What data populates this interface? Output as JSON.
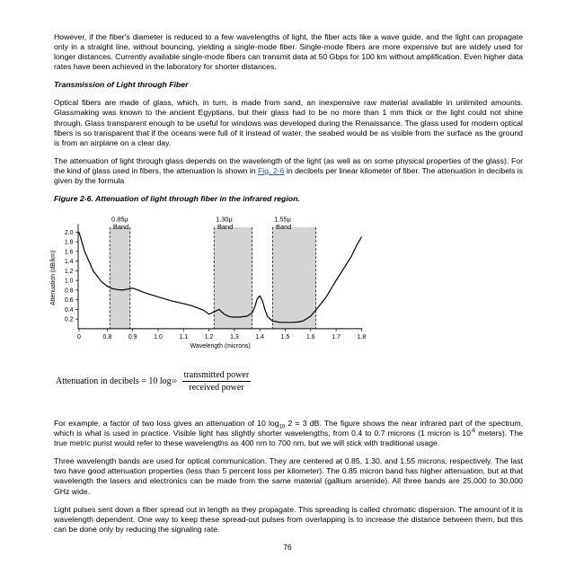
{
  "paragraphs_top": [
    "However, if the fiber's diameter is reduced to a few wavelengths of light, the fiber acts like a wave guide, and the light can propagate only in a straight line, without bouncing, yielding a single-mode fiber. Single-mode fibers are more expensive but are widely used for longer distances. Currently available single-mode fibers can transmit data at 50 Gbps for 100 km without amplification. Even higher data rates have been achieved in the laboratory for shorter distances."
  ],
  "section_heading": "Transmission of Light through Fiber",
  "para_optical": "Optical fibers are made of glass, which, in turn, is made from sand, an inexpensive raw material available in unlimited amounts. Glassmaking was known to the ancient Egyptians, but their glass had to be no more than 1 mm thick or the light could not shine through. Glass transparent enough to be useful for windows was developed during the Renaissance. The glass used for modern optical fibers is so transparent that if the oceans were full of it instead of water, the seabed would be as visible from the surface as the ground is from an airplane on a clear day.",
  "para_atten_a": "The attenuation of light through glass depends on the wavelength of the light (as well as on some physical properties of the glass). For the kind of glass used in fibers, the attenuation is shown in ",
  "para_atten_link": "Fig. 2-6",
  "para_atten_b": " in decibels per linear kilometer of fiber. The attenuation in decibels is given by the formula",
  "figure_caption": "Figure 2-6. Attenuation of light through fiber in the infrared region.",
  "formula": {
    "lhs": "Attenuation in decibels = 10 log",
    "sub": "10",
    "numerator": "transmitted power",
    "denominator": "received power"
  },
  "para_example": {
    "a": "For example, a factor of two loss gives an attenuation of 10 log",
    "sub": "10",
    "b": " 2 = 3 dB. The figure shows the near infrared part of the spectrum, which is what is used in practice. Visible light has slightly shorter wavelengths, from 0.4 to 0.7 microns (1 micron is 10",
    "sup": "-6",
    "c": " meters). The true metric purist would refer to these wavelengths as 400 nm to 700 nm, but we will stick with traditional usage."
  },
  "para_bands": "Three wavelength bands are used for optical communication. They are centered at 0.85, 1.30, and 1.55 microns, respectively. The last two have good attenuation properties (less than 5 percent loss per kilometer). The 0.85 micron band has higher attenuation, but at that wavelength the lasers and electronics can be made from the same material (gallium arsenide). All three bands are 25,000 to 30,000 GHz wide.",
  "para_pulses": "Light pulses sent down a fiber spread out in length as they propagate. This spreading is called chromatic dispersion. The amount of it is wavelength dependent. One way to keep these spread-out pulses from overlapping is to increase the distance between them, but this can be done only by reducing the signaling rate.",
  "page_number": "76",
  "chart_data": {
    "type": "line",
    "xlabel": "Wavelength (microns)",
    "ylabel": "Attenuation (dB/km)",
    "xlim": [
      0.7,
      1.8
    ],
    "ylim": [
      0,
      2.1
    ],
    "x_ticks": [
      "0",
      "0.8",
      "0.9",
      "1.0",
      "1.1",
      "1.2",
      "1.3",
      "1.4",
      "1.5",
      "1.6",
      "1.7",
      "1.8"
    ],
    "y_ticks": [
      "0.2",
      "0.4",
      "0.6",
      "0.8",
      "1.0",
      "1.2",
      "1.4",
      "1.6",
      "1.8",
      "2.0"
    ],
    "bands": [
      {
        "label_top": "0.85µ",
        "label_bottom": "Band",
        "x_start": 0.81,
        "x_end": 0.89
      },
      {
        "label_top": "1.30µ",
        "label_bottom": "Band",
        "x_start": 1.22,
        "x_end": 1.37
      },
      {
        "label_top": "1.55µ",
        "label_bottom": "Band",
        "x_start": 1.45,
        "x_end": 1.62
      }
    ],
    "x": [
      0.7,
      0.72,
      0.75,
      0.78,
      0.8,
      0.82,
      0.84,
      0.86,
      0.88,
      0.9,
      0.92,
      0.95,
      1.0,
      1.05,
      1.1,
      1.13,
      1.15,
      1.18,
      1.2,
      1.22,
      1.24,
      1.26,
      1.28,
      1.3,
      1.32,
      1.35,
      1.37,
      1.38,
      1.39,
      1.4,
      1.41,
      1.42,
      1.43,
      1.45,
      1.48,
      1.5,
      1.53,
      1.55,
      1.57,
      1.6,
      1.63,
      1.66,
      1.7,
      1.73,
      1.76,
      1.78,
      1.8
    ],
    "values": [
      2.0,
      1.6,
      1.2,
      0.97,
      0.88,
      0.83,
      0.81,
      0.8,
      0.82,
      0.84,
      0.8,
      0.74,
      0.66,
      0.58,
      0.52,
      0.48,
      0.44,
      0.38,
      0.3,
      0.35,
      0.4,
      0.3,
      0.25,
      0.24,
      0.24,
      0.26,
      0.33,
      0.45,
      0.62,
      0.68,
      0.58,
      0.4,
      0.25,
      0.16,
      0.13,
      0.13,
      0.13,
      0.14,
      0.16,
      0.26,
      0.45,
      0.65,
      1.0,
      1.25,
      1.5,
      1.72,
      1.9
    ]
  }
}
